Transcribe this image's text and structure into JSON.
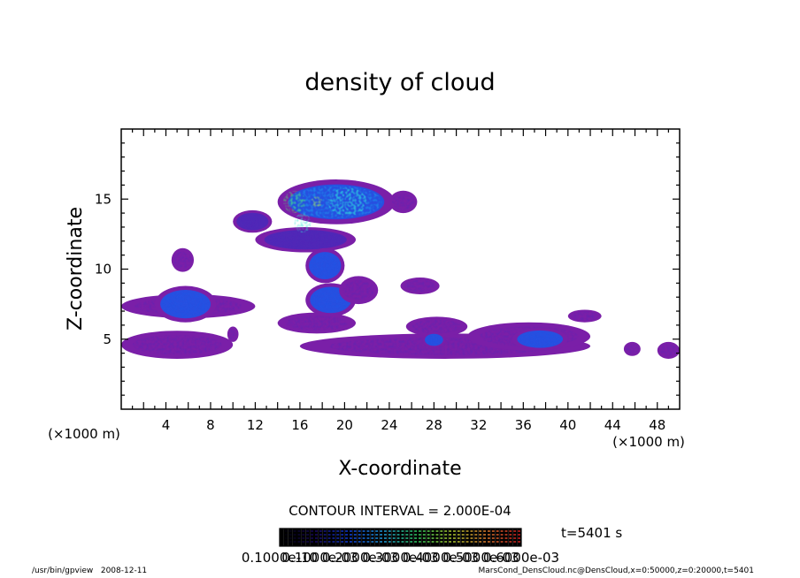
{
  "chart_data": {
    "type": "heatmap",
    "title": "density of cloud",
    "xlabel": "X-coordinate",
    "ylabel": "Z-coordinate",
    "x_unit": "(×1000 m)",
    "y_unit": "(×1000 m)",
    "xlim": [
      0,
      50
    ],
    "ylim": [
      0,
      20
    ],
    "x_ticks": [
      4,
      8,
      12,
      16,
      20,
      24,
      28,
      32,
      36,
      40,
      44,
      48
    ],
    "y_ticks": [
      5,
      10,
      15
    ],
    "contour_interval": "CONTOUR INTERVAL = 2.000E-04",
    "time_label": "t=5401 s",
    "colorbar_labels": [
      "0.1000e-10",
      "0.1000e-03",
      "0.2000e-03",
      "0.3000e-03",
      "0.4000e-03",
      "0.5000e-03",
      "0.6000e-03"
    ],
    "colorbar_colors": [
      "#000000",
      "#1a0a6a",
      "#1144ee",
      "#22aaee",
      "#33dd66",
      "#bbdd33",
      "#ee8833",
      "#dd2222"
    ],
    "level_colors": [
      "#7a1fa8",
      "#4b28b8",
      "#1e54e6",
      "#16a6f0",
      "#35e6d6",
      "#52e86a",
      "#c8e63c"
    ],
    "cloud_regions": [
      {
        "x": [
          14,
          24.5
        ],
        "z": [
          13.2,
          16.4
        ],
        "level": 3
      },
      {
        "x": [
          10,
          13.5
        ],
        "z": [
          12.6,
          14.2
        ],
        "level": 1
      },
      {
        "x": [
          24,
          26.5
        ],
        "z": [
          14.0,
          15.6
        ],
        "level": 0
      },
      {
        "x": [
          12,
          21
        ],
        "z": [
          11.2,
          13.0
        ],
        "level": 1
      },
      {
        "x": [
          16.5,
          20
        ],
        "z": [
          9.0,
          11.5
        ],
        "level": 2
      },
      {
        "x": [
          16.5,
          21
        ],
        "z": [
          6.6,
          9.0
        ],
        "level": 2
      },
      {
        "x": [
          19.5,
          23
        ],
        "z": [
          7.5,
          9.5
        ],
        "level": 0
      },
      {
        "x": [
          0,
          12
        ],
        "z": [
          6.5,
          8.2
        ],
        "level": 0
      },
      {
        "x": [
          3,
          8.5
        ],
        "z": [
          6.2,
          8.8
        ],
        "level": 2
      },
      {
        "x": [
          0,
          10
        ],
        "z": [
          3.6,
          5.6
        ],
        "level": 0
      },
      {
        "x": [
          9.5,
          10.5
        ],
        "z": [
          4.8,
          5.9
        ],
        "level": 0
      },
      {
        "x": [
          4.5,
          6.5
        ],
        "z": [
          9.8,
          11.5
        ],
        "level": 0
      },
      {
        "x": [
          14,
          21
        ],
        "z": [
          5.4,
          6.9
        ],
        "level": 0
      },
      {
        "x": [
          16,
          42
        ],
        "z": [
          3.6,
          5.4
        ],
        "level": 0
      },
      {
        "x": [
          25.5,
          31
        ],
        "z": [
          5.2,
          6.6
        ],
        "level": 0
      },
      {
        "x": [
          27,
          29
        ],
        "z": [
          4.4,
          5.5
        ],
        "level": 2
      },
      {
        "x": [
          31,
          42
        ],
        "z": [
          4.2,
          6.2
        ],
        "level": 0
      },
      {
        "x": [
          35,
          40
        ],
        "z": [
          4.2,
          5.8
        ],
        "level": 2
      },
      {
        "x": [
          40,
          43
        ],
        "z": [
          6.2,
          7.1
        ],
        "level": 0
      },
      {
        "x": [
          25,
          28.5
        ],
        "z": [
          8.2,
          9.4
        ],
        "level": 0
      },
      {
        "x": [
          45,
          46.5
        ],
        "z": [
          3.8,
          4.8
        ],
        "level": 0
      },
      {
        "x": [
          48,
          50
        ],
        "z": [
          3.6,
          4.8
        ],
        "level": 0
      }
    ],
    "hot_spots": [
      {
        "x": [
          14.5,
          16.5
        ],
        "z": [
          14.0,
          15.6
        ],
        "level": 5
      },
      {
        "x": [
          17,
          18
        ],
        "z": [
          14.4,
          15.2
        ],
        "level": 6
      },
      {
        "x": [
          15.5,
          17
        ],
        "z": [
          12.6,
          14.0
        ],
        "level": 4
      },
      {
        "x": [
          18.5,
          22
        ],
        "z": [
          13.8,
          15.8
        ],
        "level": 4
      }
    ]
  },
  "footer": {
    "left": "/usr/bin/gpview   2008-12-11",
    "right": "MarsCond_DensCloud.nc@DensCloud,x=0:50000,z=0:20000,t=5401"
  }
}
